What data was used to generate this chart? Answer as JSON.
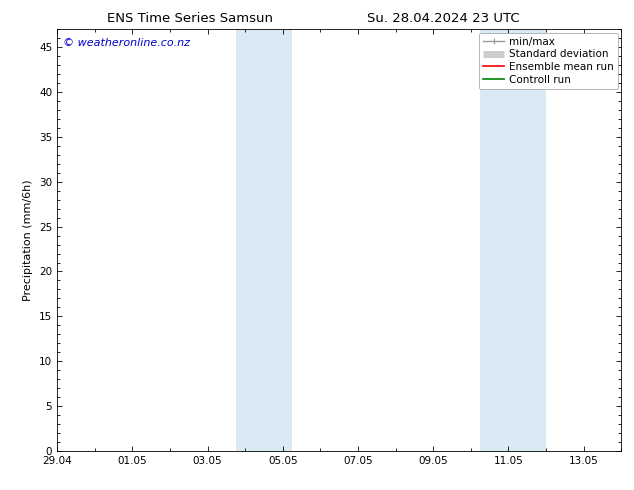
{
  "title_left": "ENS Time Series Samsun",
  "title_right": "Su. 28.04.2024 23 UTC",
  "ylabel": "Precipitation (mm/6h)",
  "watermark": "© weatheronline.co.nz",
  "watermark_color": "#0000cc",
  "ylim": [
    0,
    47
  ],
  "yticks": [
    0,
    5,
    10,
    15,
    20,
    25,
    30,
    35,
    40,
    45
  ],
  "x_min": 0,
  "x_max": 15,
  "xtick_labels": [
    "29.04",
    "01.05",
    "03.05",
    "05.05",
    "07.05",
    "09.05",
    "11.05",
    "13.05"
  ],
  "xtick_positions_days": [
    0,
    2,
    4,
    6,
    8,
    10,
    12,
    14
  ],
  "shaded_bands": [
    {
      "x_start_day": 4.75,
      "x_end_day": 6.25,
      "color": "#daeaf5"
    },
    {
      "x_start_day": 11.25,
      "x_end_day": 13.0,
      "color": "#daeaf5"
    }
  ],
  "legend_items": [
    {
      "label": "min/max",
      "color": "#999999",
      "lw": 1.0
    },
    {
      "label": "Standard deviation",
      "color": "#cccccc",
      "lw": 5
    },
    {
      "label": "Ensemble mean run",
      "color": "#ff0000",
      "lw": 1.2
    },
    {
      "label": "Controll run",
      "color": "#008000",
      "lw": 1.2
    }
  ],
  "bg_color": "#ffffff",
  "plot_bg_color": "#ffffff",
  "spine_color": "#000000",
  "title_fontsize": 9.5,
  "label_fontsize": 8,
  "tick_fontsize": 7.5,
  "watermark_fontsize": 8,
  "legend_fontsize": 7.5
}
